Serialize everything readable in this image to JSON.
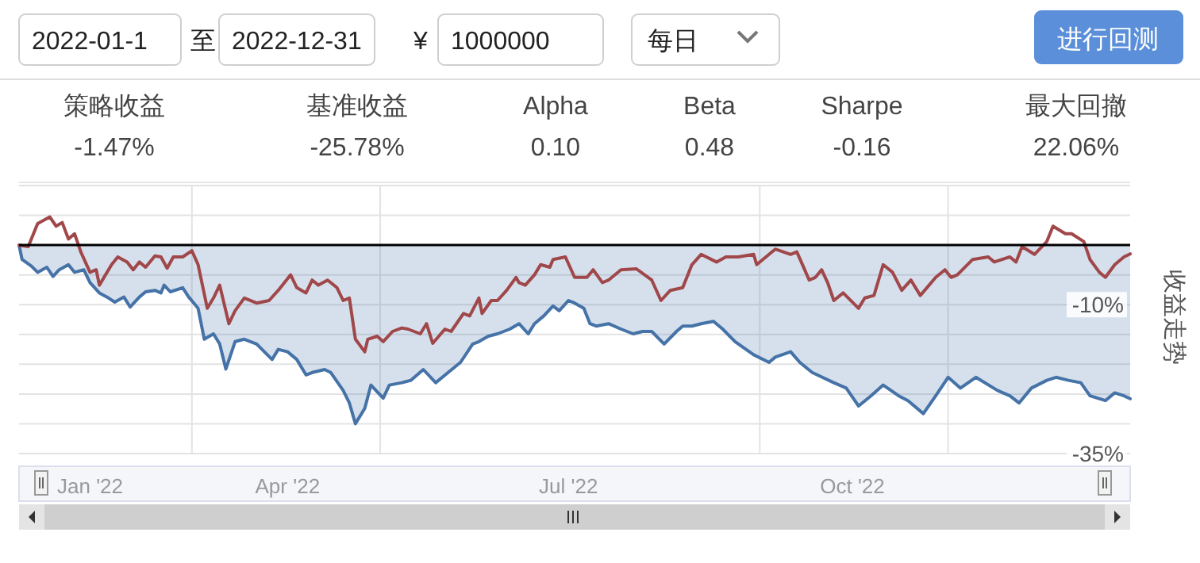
{
  "chart_data": {
    "type": "line",
    "ylabel": "收益走势",
    "xlim": [
      "2022-01-04",
      "2022-12-30"
    ],
    "ylim": [
      -35,
      10
    ],
    "yticks": [
      {
        "value": -35,
        "label": "-35%"
      },
      {
        "value": -30,
        "label": null
      },
      {
        "value": -25,
        "label": null
      },
      {
        "value": -20,
        "label": null
      },
      {
        "value": -15,
        "label": null
      },
      {
        "value": -10,
        "label": "-10%"
      },
      {
        "value": -5,
        "label": null
      },
      {
        "value": 0,
        "label": null
      },
      {
        "value": 5,
        "label": null
      },
      {
        "value": 10,
        "label": null
      }
    ],
    "xticks": [
      {
        "value": "2022-03-01",
        "label": null
      },
      {
        "value": "2022-04-01",
        "label": "Apr '22"
      },
      {
        "value": "2022-05-01",
        "label": null
      },
      {
        "value": "2022-07-01",
        "label": "Jul '22"
      },
      {
        "value": "2022-09-01",
        "label": null
      },
      {
        "value": "2022-10-01",
        "label": "Oct '22"
      },
      {
        "value": "2022-11-01",
        "label": null
      }
    ],
    "grid": true,
    "ref_lines": [
      {
        "axis": "y",
        "value": 0,
        "label": null,
        "color": "#000000"
      }
    ],
    "annotations": [
      "2022-01-1",
      "至",
      "2022-12-31",
      "¥",
      "1000000",
      "每日",
      "进行回测",
      "策略收益",
      "-1.47%",
      "基准收益",
      "-25.78%",
      "Alpha",
      "0.10",
      "Beta",
      "0.48",
      "Sharpe",
      "-0.16",
      "最大回撤",
      "22.06%",
      "Jan '22"
    ],
    "series": [
      {
        "color": "#a0474a",
        "x": [
          "2022-01-04",
          "2022-01-07",
          "2022-01-10",
          "2022-01-14",
          "2022-01-16",
          "2022-01-18",
          "2022-01-20",
          "2022-01-22",
          "2022-01-24",
          "2022-01-27",
          "2022-01-29",
          "2022-01-30",
          "2022-02-03",
          "2022-02-05",
          "2022-02-08",
          "2022-02-10",
          "2022-02-12",
          "2022-02-14",
          "2022-02-17",
          "2022-02-19",
          "2022-02-21",
          "2022-02-23",
          "2022-02-26",
          "2022-03-01",
          "2022-03-03",
          "2022-03-06",
          "2022-03-08",
          "2022-03-10",
          "2022-03-13",
          "2022-03-15",
          "2022-03-18",
          "2022-03-22",
          "2022-03-26",
          "2022-03-29",
          "2022-04-02",
          "2022-04-04",
          "2022-04-07",
          "2022-04-09",
          "2022-04-11",
          "2022-04-14",
          "2022-04-17",
          "2022-04-19",
          "2022-04-21",
          "2022-04-23",
          "2022-04-26",
          "2022-04-27",
          "2022-04-30",
          "2022-05-02",
          "2022-05-05",
          "2022-05-08",
          "2022-05-10",
          "2022-05-14",
          "2022-05-16",
          "2022-05-18",
          "2022-05-22",
          "2022-05-24",
          "2022-05-28",
          "2022-05-30",
          "2022-06-02",
          "2022-06-03",
          "2022-06-06",
          "2022-06-08",
          "2022-06-11",
          "2022-06-14",
          "2022-06-15",
          "2022-06-17",
          "2022-06-20",
          "2022-06-22",
          "2022-06-25",
          "2022-06-26",
          "2022-06-30",
          "2022-07-03",
          "2022-07-07",
          "2022-07-09",
          "2022-07-12",
          "2022-07-14",
          "2022-07-18",
          "2022-07-23",
          "2022-07-28",
          "2022-07-31",
          "2022-08-03",
          "2022-08-07",
          "2022-08-10",
          "2022-08-13",
          "2022-08-18",
          "2022-08-21",
          "2022-08-25",
          "2022-08-30",
          "2022-08-31",
          "2022-09-04",
          "2022-09-06",
          "2022-09-11",
          "2022-09-13",
          "2022-09-17",
          "2022-09-19",
          "2022-09-21",
          "2022-09-23",
          "2022-09-25",
          "2022-09-28",
          "2022-10-03",
          "2022-10-05",
          "2022-10-08",
          "2022-10-11",
          "2022-10-14",
          "2022-10-17",
          "2022-10-20",
          "2022-10-23",
          "2022-10-28",
          "2022-10-31",
          "2022-11-02",
          "2022-11-04",
          "2022-11-09",
          "2022-11-14",
          "2022-11-16",
          "2022-11-21",
          "2022-11-23",
          "2022-11-25",
          "2022-11-29",
          "2022-12-03",
          "2022-12-05",
          "2022-12-09",
          "2022-12-11",
          "2022-12-15",
          "2022-12-17",
          "2022-12-20",
          "2022-12-22",
          "2022-12-25",
          "2022-12-28",
          "2022-12-30"
        ],
        "values": [
          0,
          -0.26,
          3.62,
          4.74,
          3.19,
          3.79,
          1.03,
          1.9,
          -1.12,
          -4.57,
          -4.14,
          -6.72,
          -3.28,
          -1.98,
          -2.84,
          -4.14,
          -2.84,
          -3.71,
          -1.81,
          -1.98,
          -3.88,
          -1.98,
          -1.98,
          -0.95,
          -3.28,
          -10.6,
          -8.88,
          -6.72,
          -13.2,
          -11.0,
          -8.88,
          -9.74,
          -9.31,
          -7.59,
          -5.0,
          -7.15,
          -8.02,
          -5.86,
          -6.72,
          -5.86,
          -7.15,
          -9.31,
          -8.88,
          -15.8,
          -17.9,
          -15.8,
          -15.3,
          -16.2,
          -14.5,
          -13.9,
          -14.1,
          -14.9,
          -13.2,
          -16.5,
          -14.1,
          -14.5,
          -11.5,
          -11.9,
          -8.88,
          -11.5,
          -9.31,
          -9.31,
          -7.59,
          -5.43,
          -6.29,
          -6.72,
          -5.0,
          -3.28,
          -3.71,
          -2.41,
          -1.98,
          -5.43,
          -5.43,
          -4.14,
          -6.29,
          -5.86,
          -4.14,
          -3.97,
          -5.86,
          -9.31,
          -7.59,
          -7.15,
          -3.28,
          -1.55,
          -2.84,
          -1.98,
          -1.98,
          -1.55,
          -3.28,
          -1.55,
          -0.69,
          -1.55,
          -1.12,
          -5.86,
          -5.43,
          -4.14,
          -6.29,
          -9.31,
          -8.02,
          -10.6,
          -8.88,
          -8.45,
          -3.28,
          -4.57,
          -7.59,
          -5.86,
          -8.45,
          -5.43,
          -4.14,
          -5.43,
          -5.0,
          -2.41,
          -1.98,
          -2.84,
          -1.98,
          -2.84,
          -0.26,
          -1.55,
          0.6,
          3.19,
          1.9,
          1.9,
          0.6,
          -2.41,
          -4.57,
          -5.43,
          -3.28,
          -1.98,
          -1.47
        ]
      },
      {
        "type": "area",
        "color": "#4572a7",
        "x": [
          "2022-01-04",
          "2022-01-05",
          "2022-01-08",
          "2022-01-10",
          "2022-01-13",
          "2022-01-15",
          "2022-01-17",
          "2022-01-20",
          "2022-01-22",
          "2022-01-25",
          "2022-01-27",
          "2022-01-30",
          "2022-02-02",
          "2022-02-04",
          "2022-02-07",
          "2022-02-09",
          "2022-02-12",
          "2022-02-14",
          "2022-02-17",
          "2022-02-19",
          "2022-02-20",
          "2022-02-22",
          "2022-02-26",
          "2022-02-28",
          "2022-03-03",
          "2022-03-05",
          "2022-03-08",
          "2022-03-10",
          "2022-03-12",
          "2022-03-15",
          "2022-03-18",
          "2022-03-22",
          "2022-03-27",
          "2022-03-29",
          "2022-04-01",
          "2022-04-04",
          "2022-04-07",
          "2022-04-09",
          "2022-04-13",
          "2022-04-15",
          "2022-04-19",
          "2022-04-21",
          "2022-04-23",
          "2022-04-26",
          "2022-04-28",
          "2022-05-02",
          "2022-05-04",
          "2022-05-08",
          "2022-05-11",
          "2022-05-15",
          "2022-05-19",
          "2022-05-23",
          "2022-05-27",
          "2022-05-31",
          "2022-06-02",
          "2022-06-05",
          "2022-06-08",
          "2022-06-12",
          "2022-06-15",
          "2022-06-18",
          "2022-06-20",
          "2022-06-23",
          "2022-06-26",
          "2022-06-28",
          "2022-07-01",
          "2022-07-03",
          "2022-07-06",
          "2022-07-08",
          "2022-07-10",
          "2022-07-14",
          "2022-07-18",
          "2022-07-22",
          "2022-07-25",
          "2022-07-28",
          "2022-08-01",
          "2022-08-05",
          "2022-08-07",
          "2022-08-10",
          "2022-08-13",
          "2022-08-17",
          "2022-08-20",
          "2022-08-24",
          "2022-08-30",
          "2022-09-04",
          "2022-09-06",
          "2022-09-11",
          "2022-09-14",
          "2022-09-18",
          "2022-09-25",
          "2022-09-29",
          "2022-10-03",
          "2022-10-07",
          "2022-10-11",
          "2022-10-16",
          "2022-10-19",
          "2022-10-24",
          "2022-10-28",
          "2022-11-01",
          "2022-11-05",
          "2022-11-10",
          "2022-11-17",
          "2022-11-21",
          "2022-11-24",
          "2022-11-28",
          "2022-12-03",
          "2022-12-06",
          "2022-12-10",
          "2022-12-14",
          "2022-12-17",
          "2022-12-22",
          "2022-12-25",
          "2022-12-28",
          "2022-12-30"
        ],
        "values": [
          0,
          -2.41,
          -3.53,
          -4.57,
          -3.71,
          -5.26,
          -4.14,
          -3.28,
          -4.57,
          -4.14,
          -6.29,
          -8.02,
          -8.88,
          -9.57,
          -8.71,
          -10.4,
          -8.71,
          -7.84,
          -7.59,
          -8.02,
          -6.72,
          -7.84,
          -7.15,
          -8.71,
          -10.6,
          -15.8,
          -14.9,
          -16.6,
          -20.8,
          -16.2,
          -15.8,
          -16.6,
          -19.2,
          -17.5,
          -17.9,
          -19.2,
          -21.8,
          -21.4,
          -20.9,
          -21.4,
          -24.4,
          -26.5,
          -30.0,
          -27.4,
          -23.5,
          -25.7,
          -23.5,
          -23.1,
          -22.7,
          -20.9,
          -23.1,
          -21.4,
          -19.7,
          -16.6,
          -16.2,
          -15.3,
          -14.9,
          -14.1,
          -13.2,
          -14.9,
          -13.2,
          -11.9,
          -10.2,
          -11.0,
          -9.31,
          -9.74,
          -10.6,
          -13.2,
          -13.6,
          -13.2,
          -14.1,
          -14.9,
          -14.5,
          -14.5,
          -16.6,
          -14.5,
          -13.6,
          -13.6,
          -13.2,
          -12.8,
          -14.1,
          -16.2,
          -18.4,
          -19.7,
          -18.8,
          -17.9,
          -19.7,
          -21.4,
          -23.1,
          -24.0,
          -27.0,
          -25.3,
          -23.5,
          -25.3,
          -26.1,
          -28.3,
          -25.3,
          -22.2,
          -24.0,
          -22.2,
          -24.4,
          -25.3,
          -26.5,
          -24.0,
          -22.7,
          -22.2,
          -22.7,
          -23.1,
          -25.3,
          -26.1,
          -24.8,
          -25.3,
          -25.78
        ]
      }
    ]
  }
}
